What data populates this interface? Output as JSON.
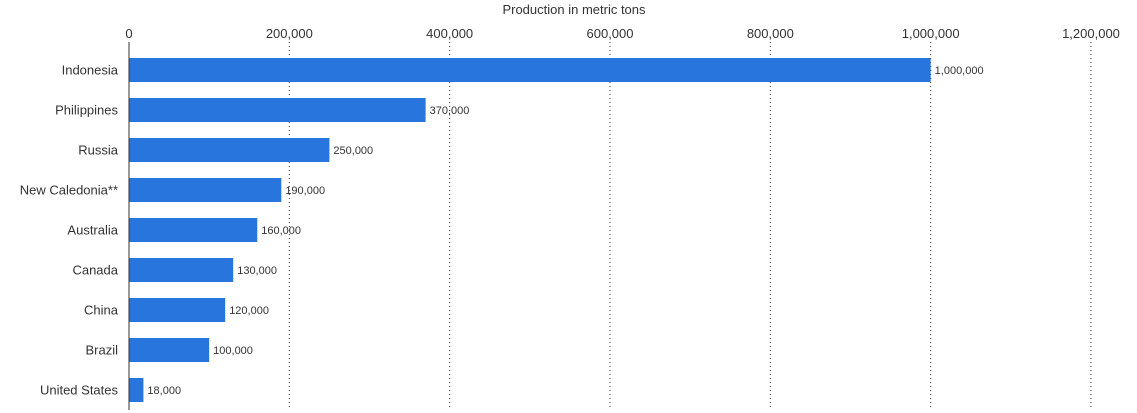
{
  "chart_data": {
    "type": "bar",
    "orientation": "horizontal",
    "xlabel": "Production in metric tons",
    "ylabel": "",
    "xlim": [
      0,
      1200000
    ],
    "x_ticks": [
      0,
      200000,
      400000,
      600000,
      800000,
      1000000,
      1200000
    ],
    "x_tick_labels": [
      "0",
      "200,000",
      "400,000",
      "600,000",
      "800,000",
      "1,000,000",
      "1,200,000"
    ],
    "x_axis_position": "top",
    "grid": true,
    "categories": [
      "Indonesia",
      "Philippines",
      "Russia",
      "New Caledonia**",
      "Australia",
      "Canada",
      "China",
      "Brazil",
      "United States"
    ],
    "values": [
      1000000,
      370000,
      250000,
      190000,
      160000,
      130000,
      120000,
      100000,
      18000
    ],
    "value_labels": [
      "1,000,000",
      "370,000",
      "250,000",
      "190,000",
      "160,000",
      "130,000",
      "120,000",
      "100,000",
      "18,000"
    ],
    "bar_color": "#2876dd"
  }
}
